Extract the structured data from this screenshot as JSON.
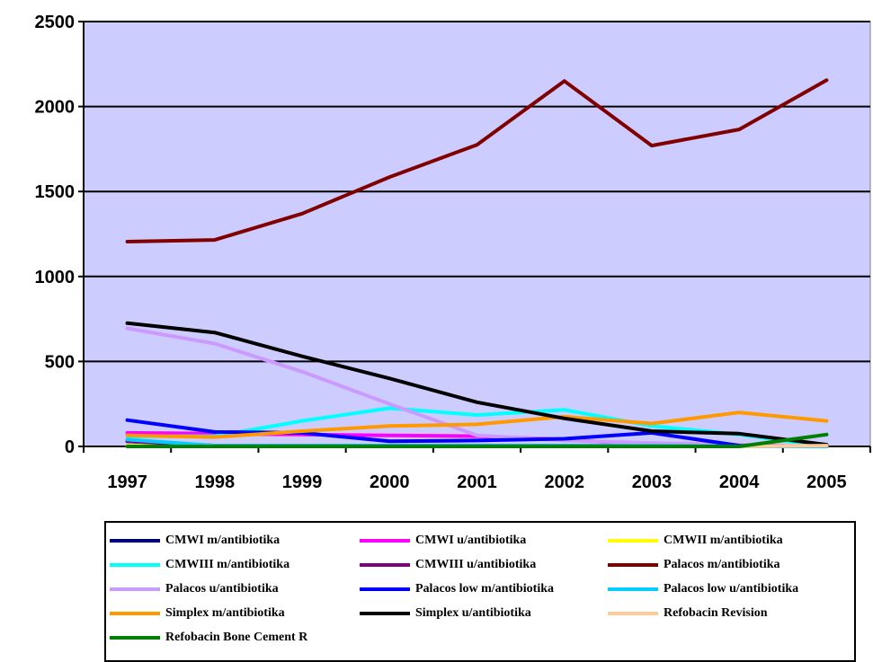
{
  "chart_data": {
    "type": "line",
    "title": "",
    "xlabel": "",
    "ylabel": "",
    "x": [
      "1997",
      "1998",
      "1999",
      "2000",
      "2001",
      "2002",
      "2003",
      "2004",
      "2005"
    ],
    "ylim": [
      0,
      2500
    ],
    "yticks": [
      "0",
      "500",
      "1000",
      "1500",
      "2000",
      "2500"
    ],
    "grid": true,
    "plot_background": "#ccccff",
    "legend_position": "bottom",
    "series": [
      {
        "name": "CMWI m/antibiotika",
        "color": "#000080",
        "values": [
          30,
          5,
          5,
          5,
          5,
          5,
          5,
          0,
          0
        ]
      },
      {
        "name": "CMWI u/antibiotika",
        "color": "#ff00ff",
        "values": [
          80,
          75,
          70,
          65,
          60,
          40,
          10,
          0,
          0
        ]
      },
      {
        "name": "CMWII m/antibiotika",
        "color": "#ffff00",
        "values": [
          5,
          5,
          5,
          5,
          5,
          5,
          5,
          0,
          0
        ]
      },
      {
        "name": "CMWIII m/antibiotika",
        "color": "#00ffff",
        "values": [
          60,
          60,
          150,
          225,
          185,
          215,
          120,
          70,
          0
        ]
      },
      {
        "name": "CMWIII u/antibiotika",
        "color": "#800080",
        "values": [
          30,
          5,
          5,
          5,
          5,
          5,
          5,
          0,
          0
        ]
      },
      {
        "name": "Palacos m/antibiotika",
        "color": "#800000",
        "values": [
          1205,
          1215,
          1370,
          1585,
          1775,
          2150,
          1770,
          1865,
          2155
        ]
      },
      {
        "name": "Palacos u/antibiotika",
        "color": "#cc99ff",
        "values": [
          695,
          605,
          440,
          250,
          65,
          35,
          20,
          10,
          0
        ]
      },
      {
        "name": "Palacos low m/antibiotika",
        "color": "#0000ff",
        "values": [
          155,
          85,
          80,
          30,
          35,
          45,
          80,
          5,
          0
        ]
      },
      {
        "name": "Palacos low u/antibiotika",
        "color": "#00ccff",
        "values": [
          40,
          5,
          5,
          5,
          5,
          5,
          5,
          0,
          0
        ]
      },
      {
        "name": "Simplex m/antibiotika",
        "color": "#ff9900",
        "values": [
          65,
          55,
          90,
          120,
          130,
          175,
          135,
          200,
          150
        ]
      },
      {
        "name": "Simplex u/antibiotika",
        "color": "#000000",
        "values": [
          725,
          670,
          530,
          400,
          260,
          165,
          90,
          75,
          10
        ]
      },
      {
        "name": "Refobacin Revision",
        "color": "#ffcc99",
        "values": [
          0,
          0,
          0,
          0,
          0,
          0,
          0,
          0,
          5
        ]
      },
      {
        "name": "Refobacin Bone Cement R",
        "color": "#008000",
        "values": [
          0,
          0,
          0,
          0,
          0,
          0,
          0,
          0,
          70
        ]
      }
    ]
  }
}
